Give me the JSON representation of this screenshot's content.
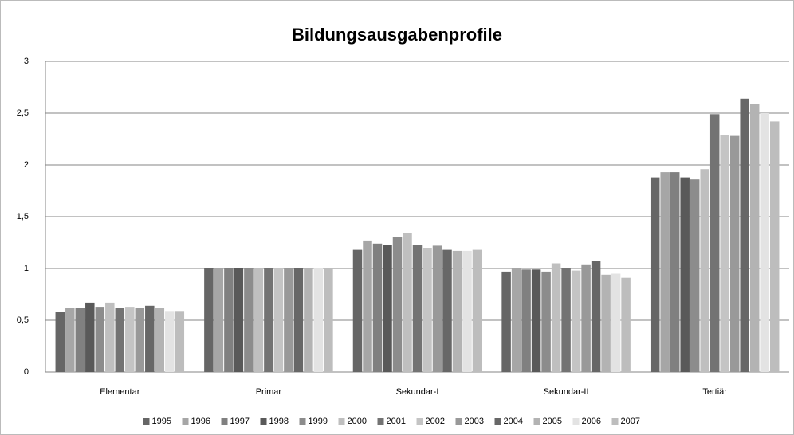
{
  "chart_data": {
    "type": "bar",
    "title": "Bildungsausgabenprofile",
    "categories": [
      "Elementar",
      "Primar",
      "Sekundar-I",
      "Sekundar-II",
      "Tertiär"
    ],
    "series": [
      {
        "name": "1995",
        "color": "#666666",
        "values": [
          0.58,
          1.0,
          1.18,
          0.97,
          1.88
        ]
      },
      {
        "name": "1996",
        "color": "#a6a6a6",
        "values": [
          0.62,
          1.0,
          1.27,
          1.0,
          1.93
        ]
      },
      {
        "name": "1997",
        "color": "#808080",
        "values": [
          0.62,
          1.0,
          1.24,
          0.99,
          1.93
        ]
      },
      {
        "name": "1998",
        "color": "#595959",
        "values": [
          0.67,
          1.0,
          1.23,
          0.99,
          1.88
        ]
      },
      {
        "name": "1999",
        "color": "#8c8c8c",
        "values": [
          0.63,
          1.0,
          1.3,
          0.97,
          1.86
        ]
      },
      {
        "name": "2000",
        "color": "#bfbfbf",
        "values": [
          0.67,
          1.0,
          1.34,
          1.05,
          1.96
        ]
      },
      {
        "name": "2001",
        "color": "#737373",
        "values": [
          0.62,
          1.0,
          1.23,
          1.0,
          2.49
        ]
      },
      {
        "name": "2002",
        "color": "#c4c4c4",
        "values": [
          0.63,
          1.0,
          1.2,
          0.98,
          2.29
        ]
      },
      {
        "name": "2003",
        "color": "#999999",
        "values": [
          0.62,
          1.0,
          1.22,
          1.04,
          2.28
        ]
      },
      {
        "name": "2004",
        "color": "#676767",
        "values": [
          0.64,
          1.0,
          1.18,
          1.07,
          2.64
        ]
      },
      {
        "name": "2005",
        "color": "#b3b3b3",
        "values": [
          0.62,
          1.0,
          1.17,
          0.94,
          2.59
        ]
      },
      {
        "name": "2006",
        "color": "#e3e3e3",
        "values": [
          0.59,
          1.0,
          1.17,
          0.95,
          2.5
        ]
      },
      {
        "name": "2007",
        "color": "#bdbdbd",
        "values": [
          0.59,
          1.0,
          1.18,
          0.91,
          2.42
        ]
      }
    ],
    "ylim": [
      0,
      3
    ],
    "yticks": [
      0,
      {
        "value": 0.5,
        "label": "0,5"
      },
      1,
      {
        "value": 1.5,
        "label": "1,5"
      },
      2,
      {
        "value": 2.5,
        "label": "2,5"
      },
      3
    ],
    "grid": true
  }
}
